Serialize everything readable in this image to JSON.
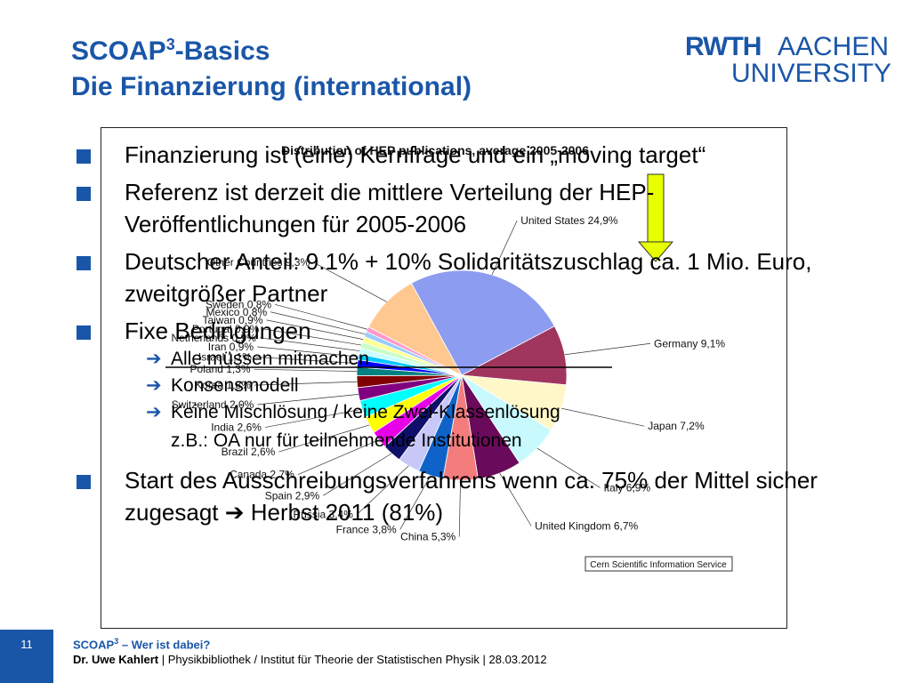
{
  "header": {
    "title_prefix": "SCOAP",
    "title_sup": "3",
    "title_suffix": "-Basics",
    "subtitle": "Die Finanzierung (international)"
  },
  "logo": {
    "rwth": "RWTH",
    "aachen": "AACHEN",
    "university": "UNIVERSITY"
  },
  "chart_data": {
    "type": "pie",
    "title": "Distribution of HEP publications, average 2005-2006",
    "source": "Cern Scientific Information Service",
    "slices": [
      {
        "label": "United States 24,9%",
        "value": 24.9,
        "color": "#8c9cf0"
      },
      {
        "label": "Germany 9,1%",
        "value": 9.1,
        "color": "#a0365e"
      },
      {
        "label": "Japan 7,2%",
        "value": 7.2,
        "color": "#fff7c8"
      },
      {
        "label": "Italy 6,9%",
        "value": 6.9,
        "color": "#c8fafd"
      },
      {
        "label": "United Kingdom 6,7%",
        "value": 6.7,
        "color": "#6a0a5a"
      },
      {
        "label": "China 5,3%",
        "value": 5.3,
        "color": "#f47c7c"
      },
      {
        "label": "France 3,8%",
        "value": 3.8,
        "color": "#0f63c8"
      },
      {
        "label": "Russia 3,4%",
        "value": 3.4,
        "color": "#c8c8f8"
      },
      {
        "label": "Spain 2,9%",
        "value": 2.9,
        "color": "#10106a"
      },
      {
        "label": "Canada 2,7%",
        "value": 2.7,
        "color": "#e800e8"
      },
      {
        "label": "Brazil 2,6%",
        "value": 2.6,
        "color": "#ffff00"
      },
      {
        "label": "India 2,6%",
        "value": 2.6,
        "color": "#00ffff"
      },
      {
        "label": "Switzerland 2,0%",
        "value": 2.0,
        "color": "#800080"
      },
      {
        "label": "Korea 1,8%",
        "value": 1.8,
        "color": "#800000"
      },
      {
        "label": "Poland 1,3%",
        "value": 1.3,
        "color": "#008080"
      },
      {
        "label": "Israel 1,1%",
        "value": 1.1,
        "color": "#0000ff"
      },
      {
        "label": "Iran 0,9%",
        "value": 0.9,
        "color": "#00c8ff"
      },
      {
        "label": "Netherlands 0,9%",
        "value": 0.9,
        "color": "#c8ffff"
      },
      {
        "label": "Portugal 0,9%",
        "value": 0.9,
        "color": "#c8ffc8"
      },
      {
        "label": "Taiwan 0,9%",
        "value": 0.9,
        "color": "#ffff99"
      },
      {
        "label": "Mexico 0,8%",
        "value": 0.8,
        "color": "#99ccff"
      },
      {
        "label": "Sweden 0,8%",
        "value": 0.8,
        "color": "#ff99cc"
      },
      {
        "label": "Other Countries 9,3%",
        "value": 9.3,
        "color": "#ffc891"
      }
    ]
  },
  "bullets": [
    {
      "text": "Finanzierung ist (eine) Kernfrage und ein „moving target“"
    },
    {
      "text": "Referenz ist derzeit die mittlere Verteilung der HEP-Veröffentlichungen für 2005-2006"
    },
    {
      "text": "Deutscher Anteil: 9.1% + 10% Solidaritätszuschlag ca. 1 Mio. Euro, zweitgrößer Partner"
    },
    {
      "text": "Fixe Bedingungen"
    }
  ],
  "sub_bullets": [
    {
      "text": "Alle müssen mitmachen"
    },
    {
      "text": "Konsensmodell"
    },
    {
      "text": "Keine Mischlösung / keine Zwei-Klassenlösung",
      "text2": "z.B.: OA nur für teilnehmende Institutionen"
    }
  ],
  "last_bullet": {
    "text": "Start des Ausschreibungsverfahrens wenn ca. 75% der Mittel sicher zugesagt ",
    "arrow": "➔",
    "text_end": " Herbst 2011 (81%)"
  },
  "colors": {
    "accent": "#1a56a8",
    "arrow_marker": "#e8ff00"
  },
  "footer": {
    "page": "11",
    "line1_prefix": "SCOAP",
    "line1_sup": "3",
    "line1_suffix": " – Wer ist dabei?",
    "author": "Dr. Uwe Kahlert",
    "rest": " | Physikbibliothek / Institut für Theorie der Statistischen Physik | 28.03.2012"
  }
}
